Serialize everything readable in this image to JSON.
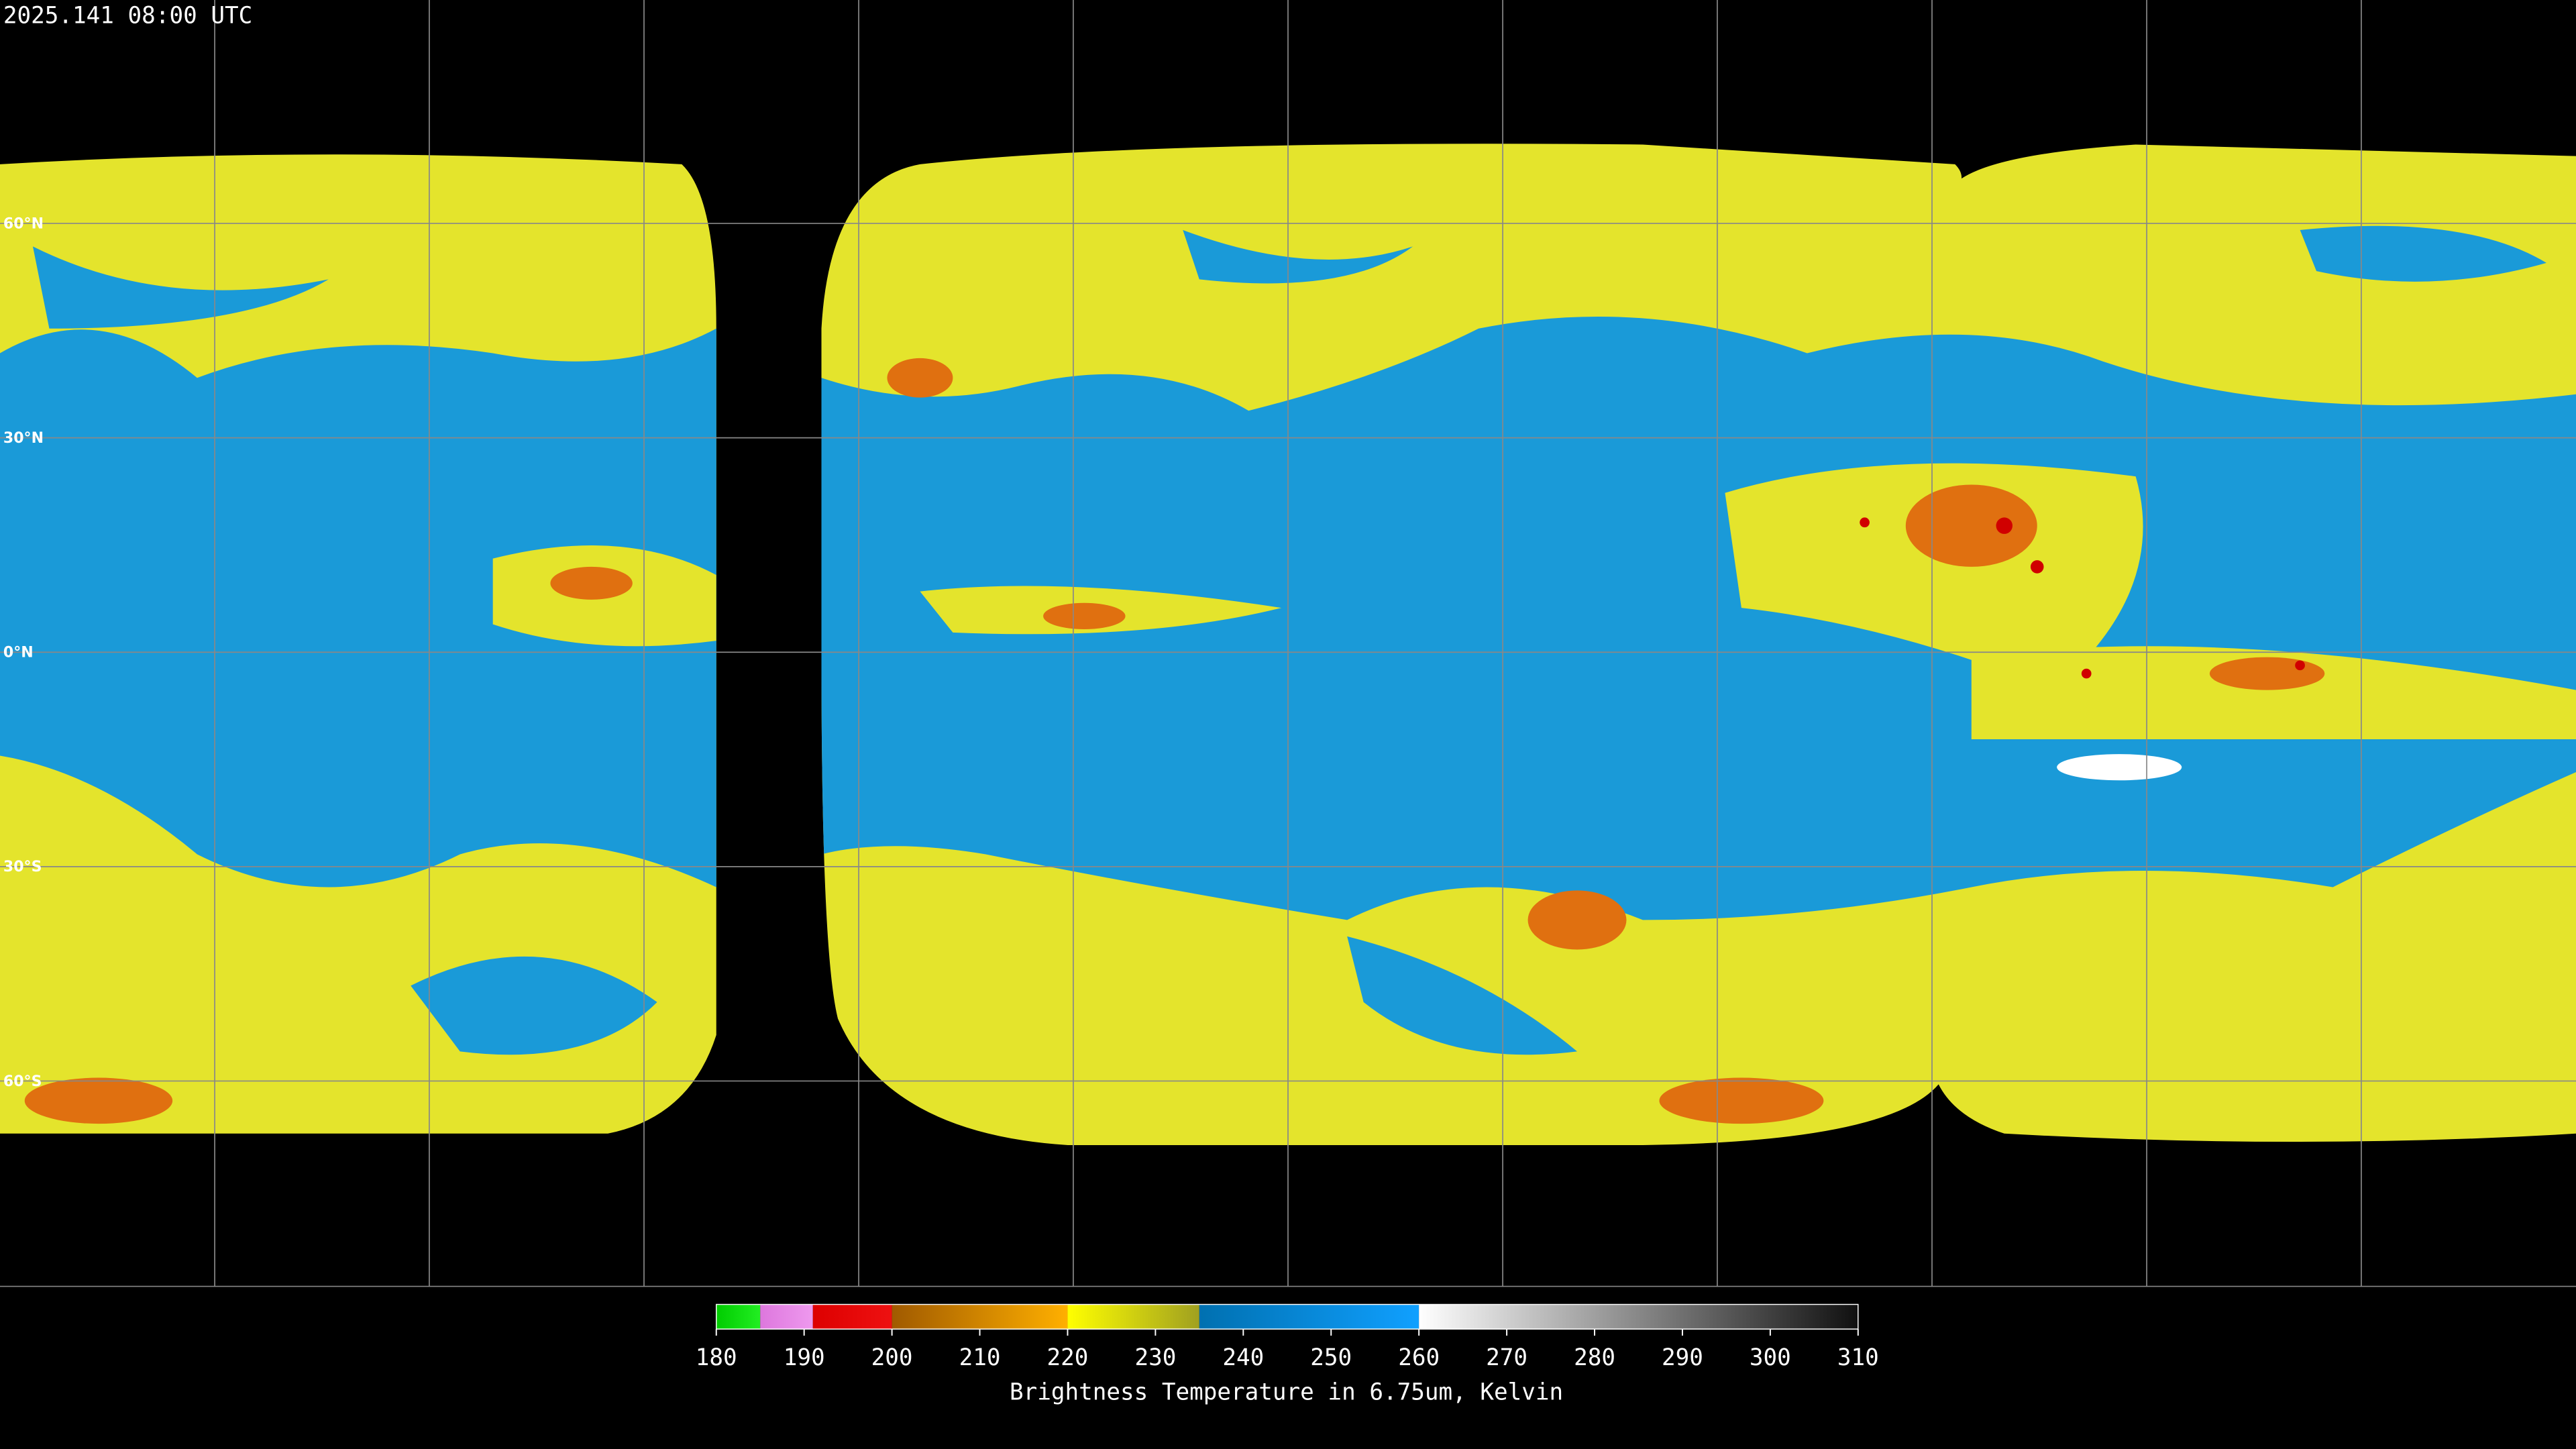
{
  "header": {
    "timestamp": "2025.141 08:00 UTC"
  },
  "map": {
    "latitude_lines": [
      {
        "value": 60,
        "label": "60°N"
      },
      {
        "value": 30,
        "label": "30°N"
      },
      {
        "value": 0,
        "label": "0°N"
      },
      {
        "value": -30,
        "label": "30°S"
      },
      {
        "value": -60,
        "label": "60°S"
      }
    ]
  },
  "colorbar": {
    "range": [
      180,
      310
    ],
    "ticks": [
      180,
      190,
      200,
      210,
      220,
      230,
      240,
      250,
      260,
      270,
      280,
      290,
      300,
      310
    ],
    "title": "Brightness Temperature in 6.75um, Kelvin",
    "segments": [
      {
        "range": [
          180,
          185
        ],
        "colors": [
          "#00cc00",
          "#22ee22"
        ]
      },
      {
        "range": [
          185,
          191
        ],
        "colors": [
          "#dd77dd",
          "#ee99ee"
        ]
      },
      {
        "range": [
          191,
          200
        ],
        "colors": [
          "#dd0000",
          "#ee1111"
        ]
      },
      {
        "range": [
          200,
          220
        ],
        "colors": [
          "#a05a00",
          "#ffb000"
        ]
      },
      {
        "range": [
          220,
          235
        ],
        "colors": [
          "#ffff00",
          "#a0a020"
        ]
      },
      {
        "range": [
          235,
          260
        ],
        "colors": [
          "#0070b0",
          "#10a0ff"
        ]
      },
      {
        "range": [
          260,
          310
        ],
        "colors": [
          "#ffffff",
          "#101010"
        ]
      }
    ]
  }
}
